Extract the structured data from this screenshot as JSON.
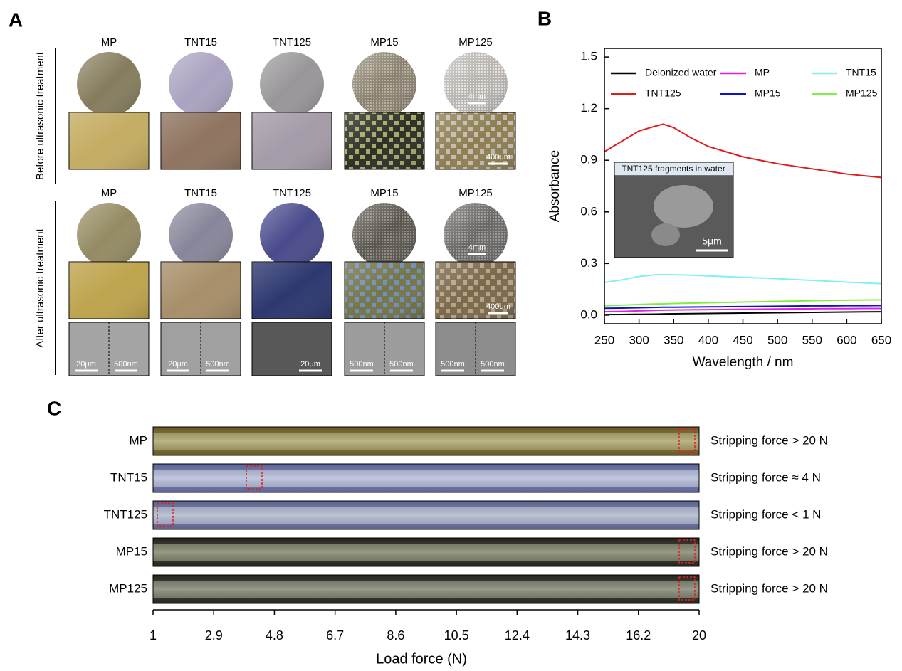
{
  "panel_letters": [
    "A",
    "B",
    "C"
  ],
  "panel_a": {
    "before": {
      "label": "Before ultrasonic treatment",
      "columns": [
        "MP",
        "TNT15",
        "TNT125",
        "MP15",
        "MP125"
      ],
      "photo_scale": "4mm",
      "micro_scale": "400μm"
    },
    "after": {
      "label": "After ultrasonic treatment",
      "columns": [
        "MP",
        "TNT15",
        "TNT125",
        "MP15",
        "MP125"
      ],
      "photo_scale": "4mm",
      "micro_scale": "400μm",
      "sem_scales": [
        [
          "20μm",
          "500nm"
        ],
        [
          "20μm",
          "500nm"
        ],
        [
          "20μm"
        ],
        [
          "500nm",
          "500nm"
        ],
        [
          "500nm",
          "500nm"
        ]
      ]
    }
  },
  "chart_data": [
    {
      "type": "line",
      "xlabel": "Wavelength / nm",
      "ylabel": "Absorbance",
      "inset": {
        "title": "TNT125 fragments in water",
        "scale": "5μm"
      },
      "legend": "top",
      "x": [
        250,
        275,
        300,
        325,
        335,
        350,
        375,
        400,
        425,
        450,
        475,
        500,
        525,
        550,
        575,
        600,
        625,
        650
      ],
      "series": [
        {
          "name": "Deionized water",
          "color": "#000000",
          "values": [
            0.003,
            0.004,
            0.005,
            0.006,
            0.007,
            0.008,
            0.009,
            0.01,
            0.011,
            0.012,
            0.013,
            0.014,
            0.015,
            0.016,
            0.017,
            0.018,
            0.019,
            0.02
          ]
        },
        {
          "name": "MP",
          "color": "#e020e0",
          "values": [
            0.02,
            0.022,
            0.025,
            0.028,
            0.029,
            0.03,
            0.031,
            0.032,
            0.033,
            0.034,
            0.035,
            0.036,
            0.037,
            0.037,
            0.038,
            0.038,
            0.039,
            0.039
          ]
        },
        {
          "name": "TNT15",
          "color": "#80f0f0",
          "values": [
            0.19,
            0.205,
            0.225,
            0.235,
            0.236,
            0.235,
            0.232,
            0.228,
            0.224,
            0.22,
            0.216,
            0.212,
            0.207,
            0.202,
            0.197,
            0.192,
            0.187,
            0.183
          ]
        },
        {
          "name": "TNT125",
          "color": "#dd1c1c",
          "values": [
            0.95,
            1.01,
            1.07,
            1.1,
            1.11,
            1.09,
            1.03,
            0.98,
            0.95,
            0.92,
            0.9,
            0.88,
            0.865,
            0.85,
            0.835,
            0.82,
            0.81,
            0.8
          ]
        },
        {
          "name": "MP15",
          "color": "#1010d0",
          "values": [
            0.04,
            0.041,
            0.043,
            0.045,
            0.046,
            0.046,
            0.047,
            0.048,
            0.049,
            0.05,
            0.051,
            0.052,
            0.053,
            0.054,
            0.054,
            0.055,
            0.055,
            0.056
          ]
        },
        {
          "name": "MP125",
          "color": "#80f040",
          "values": [
            0.055,
            0.058,
            0.062,
            0.065,
            0.066,
            0.068,
            0.07,
            0.072,
            0.074,
            0.076,
            0.078,
            0.08,
            0.082,
            0.084,
            0.086,
            0.087,
            0.088,
            0.089
          ]
        }
      ],
      "xlim": [
        250,
        650
      ],
      "xticks": [
        250,
        300,
        350,
        400,
        450,
        500,
        550,
        600,
        650
      ],
      "ylim": [
        -0.05,
        1.55
      ],
      "yticks": [
        {
          "value": 0,
          "label": "0.0"
        },
        0.3,
        0.6,
        0.9,
        1.2,
        1.5
      ]
    },
    {
      "type": "strips",
      "xlabel": "Load force  (N)",
      "categories": [
        "MP",
        "TNT15",
        "TNT125",
        "MP15",
        "MP125"
      ],
      "annotations": [
        "Stripping force > 20 N",
        "Stripping force ≈ 4 N",
        "Stripping force < 1 N",
        "Stripping force > 20 N",
        "Stripping force > 20 N"
      ],
      "xlim": [
        1,
        20
      ],
      "xticks": [
        1,
        2.9,
        4.8,
        6.7,
        8.6,
        10.5,
        12.4,
        14.3,
        16.2,
        20
      ]
    }
  ]
}
